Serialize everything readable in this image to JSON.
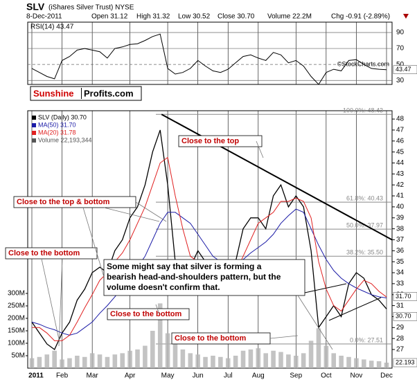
{
  "chart_data": {
    "type": "stock",
    "header": {
      "symbol": "SLV",
      "name": "(iShares Silver Trust) NYSE",
      "date": "8-Dec-2011",
      "open": "Open 31.12",
      "high": "High 31.32",
      "low": "Low 30.52",
      "close": "Close 30.70",
      "volume": "Volume 22.2M",
      "change": "Chg -0.91 (-2.89%)",
      "credit": "©StockCharts.com"
    },
    "logo": {
      "first": "Sunshine",
      "second": "Profits.com"
    },
    "rsi_label": "RSI(14) 43.47",
    "legend": [
      "SLV (Daily) 30.70",
      "MA(50) 31.70",
      "MA(20) 31.78",
      "Volume 22,193,344"
    ],
    "categories": [
      "2011",
      null,
      null,
      null,
      "Feb",
      null,
      null,
      null,
      "Mar",
      null,
      null,
      null,
      null,
      "Apr",
      null,
      null,
      null,
      null,
      "May",
      null,
      null,
      null,
      "Jun",
      null,
      null,
      null,
      "Jul",
      null,
      null,
      null,
      "Aug",
      null,
      null,
      null,
      null,
      "Sep",
      null,
      null,
      null,
      "Oct",
      null,
      null,
      null,
      "Nov",
      null,
      null,
      null,
      "Dec"
    ],
    "series": [
      {
        "name": "SLV (Daily) 30.70",
        "color": "#000000",
        "values": [
          29.5,
          28.5,
          27.5,
          27,
          28.5,
          29.5,
          31.5,
          32.5,
          34,
          34.5,
          34,
          36,
          37,
          39,
          40,
          42,
          45,
          47,
          42,
          35,
          34,
          34.5,
          36,
          35,
          34,
          33.5,
          33,
          35,
          38,
          39,
          39,
          38,
          41,
          42,
          40,
          41,
          40,
          36,
          29,
          30,
          31,
          30,
          33,
          34,
          33.5,
          32,
          31.5,
          30.7
        ]
      },
      {
        "name": "MA(50) 31.70",
        "color": "#1a1aa6",
        "values": [
          29.5,
          29.3,
          29,
          28.8,
          28.5,
          28.3,
          28.5,
          29,
          29.5,
          30.3,
          31,
          31.8,
          32.6,
          33.5,
          34.5,
          35.5,
          37,
          38.5,
          39.5,
          39.5,
          39,
          38.5,
          37.5,
          36.5,
          35.5,
          35,
          34.8,
          34.8,
          35.2,
          35.8,
          36.3,
          36.8,
          37.5,
          38.5,
          39.2,
          39.8,
          39.5,
          38,
          36.5,
          35.2,
          34.2,
          33.5,
          33,
          32.6,
          32.3,
          32,
          31.8,
          31.7
        ]
      },
      {
        "name": "MA(20) 31.78",
        "color": "#e02020",
        "values": [
          29,
          29,
          28.5,
          27.8,
          27.8,
          28.3,
          29.5,
          30.8,
          32,
          33.3,
          34,
          35,
          35.8,
          37,
          38.5,
          40,
          42,
          44,
          44.5,
          41,
          38,
          35.5,
          35,
          35,
          35,
          34.5,
          33.8,
          34,
          35.5,
          37,
          38.5,
          39,
          39.5,
          40.5,
          40.5,
          40.8,
          40.5,
          39,
          35,
          32.5,
          31,
          30.5,
          31.5,
          32.5,
          33.3,
          33,
          32.3,
          31.78
        ]
      }
    ],
    "rsi": {
      "color": "#000000",
      "values": [
        45,
        40,
        35,
        32,
        55,
        60,
        68,
        70,
        68,
        66,
        58,
        70,
        72,
        75,
        76,
        80,
        85,
        88,
        45,
        38,
        40,
        45,
        55,
        48,
        42,
        40,
        44,
        52,
        60,
        62,
        58,
        55,
        65,
        62,
        52,
        55,
        48,
        35,
        25,
        40,
        44,
        42,
        55,
        56,
        50,
        45,
        44,
        43.47
      ],
      "ylim": [
        25,
        103
      ],
      "yticks": [
        30,
        50,
        70,
        90
      ]
    },
    "volume": {
      "color": "#b4b4b4",
      "values": [
        40,
        45,
        55,
        70,
        35,
        40,
        50,
        45,
        60,
        55,
        45,
        55,
        60,
        70,
        75,
        90,
        150,
        260,
        140,
        120,
        75,
        60,
        55,
        45,
        50,
        45,
        40,
        50,
        70,
        75,
        80,
        60,
        70,
        65,
        55,
        50,
        60,
        110,
        160,
        90,
        60,
        50,
        45,
        40,
        35,
        30,
        28,
        22.193
      ],
      "ylim": [
        0,
        300
      ],
      "yticks": [
        {
          "value": 50,
          "label": "50M"
        },
        {
          "value": 100,
          "label": "100M"
        },
        {
          "value": 150,
          "label": "150M"
        },
        {
          "value": 200,
          "label": "200M"
        },
        {
          "value": 250,
          "label": "250M"
        },
        {
          "value": 300,
          "label": "300M"
        }
      ]
    },
    "ylim": [
      25.3,
      48.76
    ],
    "yticks": [
      27,
      28,
      29,
      30,
      31,
      32,
      33,
      34,
      35,
      36,
      37,
      38,
      39,
      40,
      41,
      42,
      43,
      44,
      45,
      46,
      47,
      48
    ],
    "last_labels": {
      "rsi": "43.47",
      "ma50": "31.70",
      "close": "30.70",
      "volume": "22.193"
    },
    "fibonacci": [
      {
        "value": 48.43,
        "label": "100.0%: 48.43"
      },
      {
        "value": 40.43,
        "label": "61.8%: 40.43"
      },
      {
        "value": 37.97,
        "label": "50.0%: 37.97"
      },
      {
        "value": 35.5,
        "label": "38.2%: 35.50"
      },
      {
        "value": 27.51,
        "label": "0.0%: 27.51"
      }
    ],
    "annotations": [
      "Close to the top",
      "Close to the top & bottom",
      "Close to the bottom",
      "Some might say that silver is forming a bearish head-and-shoulders pattern, but the volume doesn't confirm that.",
      "Close to the bottom",
      "Close to the bottom"
    ]
  }
}
